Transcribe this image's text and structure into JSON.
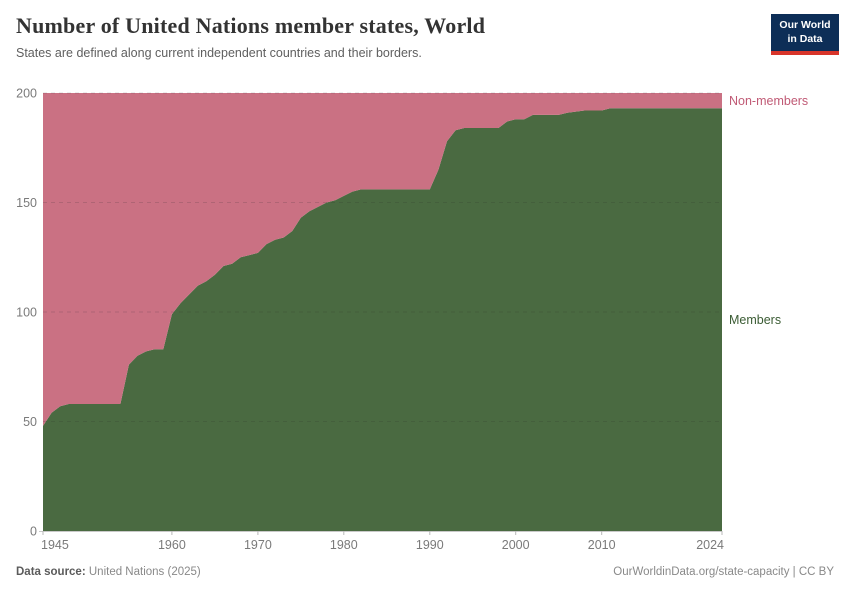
{
  "header": {
    "title": "Number of United Nations member states, World",
    "subtitle": "States are defined along current independent countries and their borders.",
    "logo": {
      "line1": "Our World",
      "line2": "in Data",
      "bg_color": "#0d2e57",
      "accent_color": "#d8352a"
    }
  },
  "chart_data": {
    "type": "area",
    "stacked": true,
    "title": "Number of United Nations member states, World",
    "xlabel": "",
    "ylabel": "",
    "xlim": [
      1945,
      2024
    ],
    "ylim": [
      0,
      200
    ],
    "xticks": [
      1945,
      1960,
      1970,
      1980,
      1990,
      2000,
      2010,
      2024
    ],
    "yticks": [
      0,
      50,
      100,
      150,
      200
    ],
    "grid": "dashed-horizontal",
    "legend_position": "right-of-plot-inline-labels",
    "total_constant": 200,
    "x": [
      1945,
      1946,
      1947,
      1948,
      1950,
      1954,
      1955,
      1956,
      1957,
      1958,
      1959,
      1960,
      1961,
      1962,
      1963,
      1964,
      1965,
      1966,
      1967,
      1968,
      1969,
      1970,
      1971,
      1972,
      1973,
      1974,
      1975,
      1976,
      1977,
      1978,
      1979,
      1980,
      1981,
      1982,
      1984,
      1990,
      1991,
      1992,
      1993,
      1994,
      1998,
      1999,
      2000,
      2001,
      2002,
      2005,
      2006,
      2008,
      2010,
      2011,
      2024
    ],
    "series": [
      {
        "name": "Members",
        "color": "#4a6a41",
        "label_color": "#3b5c34",
        "values": [
          48,
          54,
          57,
          58,
          58,
          58,
          76,
          80,
          82,
          83,
          83,
          99,
          104,
          108,
          112,
          114,
          117,
          121,
          122,
          125,
          126,
          127,
          131,
          133,
          134,
          137,
          143,
          146,
          148,
          150,
          151,
          153,
          155,
          156,
          156,
          156,
          165,
          178,
          183,
          184,
          184,
          187,
          188,
          188,
          190,
          190,
          191,
          192,
          192,
          193,
          193
        ]
      },
      {
        "name": "Non-members",
        "color": "#ca7183",
        "label_color": "#c05a75",
        "values": [
          152,
          146,
          143,
          142,
          142,
          142,
          124,
          120,
          118,
          117,
          117,
          101,
          96,
          92,
          88,
          86,
          83,
          79,
          78,
          75,
          74,
          73,
          69,
          67,
          66,
          63,
          57,
          54,
          52,
          50,
          49,
          47,
          45,
          44,
          44,
          44,
          35,
          22,
          17,
          16,
          16,
          13,
          12,
          12,
          10,
          10,
          9,
          8,
          8,
          7,
          7
        ]
      }
    ]
  },
  "footer": {
    "source_label": "Data source:",
    "source_value": "United Nations (2025)",
    "credit": "OurWorldinData.org/state-capacity | CC BY"
  }
}
